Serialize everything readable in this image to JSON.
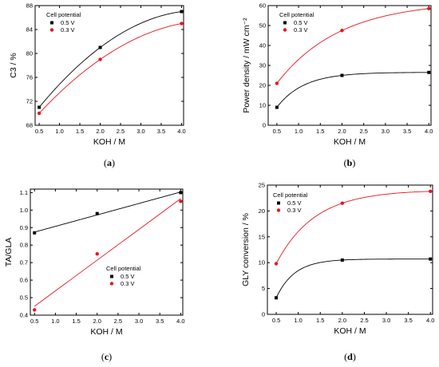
{
  "figure": {
    "colors": {
      "series_0_5V": "#000000",
      "series_0_3V": "#e8141c"
    }
  },
  "chart_data": [
    {
      "type": "scatter",
      "panel": "(a)",
      "xlabel": "KOH / M",
      "ylabel": "C3 / %",
      "xlim": [
        0.4,
        4.05
      ],
      "ylim": [
        68,
        88
      ],
      "xticks": [
        0.5,
        1.0,
        1.5,
        2.0,
        2.5,
        3.0,
        3.5,
        4.0
      ],
      "yticks": [
        68,
        72,
        76,
        80,
        84,
        88
      ],
      "xtick_decimals": 1,
      "ytick_decimals": 0,
      "legend": {
        "title": "Cell potential",
        "position": "top-left"
      },
      "series": [
        {
          "name": "0.5 V",
          "color": "#000000",
          "marker": "square",
          "x": [
            0.5,
            2.0,
            4.0
          ],
          "y": [
            71,
            81,
            87
          ],
          "fit": "quadratic"
        },
        {
          "name": "0.3 V",
          "color": "#e8141c",
          "marker": "circle",
          "x": [
            0.5,
            2.0,
            4.0
          ],
          "y": [
            70,
            79,
            85
          ],
          "fit": "quadratic"
        }
      ]
    },
    {
      "type": "scatter",
      "panel": "(b)",
      "xlabel": "KOH / M",
      "ylabel": "Power density / mW cm⁻²",
      "xlim": [
        0.3,
        4.05
      ],
      "ylim": [
        0,
        60
      ],
      "xticks": [
        0.5,
        1.0,
        1.5,
        2.0,
        2.5,
        3.0,
        3.5,
        4.0
      ],
      "yticks": [
        0,
        10,
        20,
        30,
        40,
        50,
        60
      ],
      "xtick_decimals": 1,
      "ytick_decimals": 0,
      "legend": {
        "title": "Cell potential",
        "position": "top-left"
      },
      "series": [
        {
          "name": "0.5 V",
          "color": "#000000",
          "marker": "square",
          "x": [
            0.5,
            2.0,
            4.0
          ],
          "y": [
            9,
            25,
            26.5
          ],
          "fit": "exp_sat"
        },
        {
          "name": "0.3 V",
          "color": "#e8141c",
          "marker": "circle",
          "x": [
            0.5,
            2.0,
            4.0
          ],
          "y": [
            21,
            47.5,
            58.5
          ],
          "fit": "exp_sat"
        }
      ]
    },
    {
      "type": "scatter",
      "panel": "(c)",
      "xlabel": "KOH / M",
      "ylabel": "TA/GLA",
      "xlim": [
        0.4,
        4.05
      ],
      "ylim": [
        0.4,
        1.12
      ],
      "xticks": [
        0.5,
        1.0,
        1.5,
        2.0,
        2.5,
        3.0,
        3.5,
        4.0
      ],
      "yticks": [
        0.4,
        0.5,
        0.6,
        0.7,
        0.8,
        0.9,
        1.0,
        1.1
      ],
      "xtick_decimals": 1,
      "ytick_decimals": 1,
      "legend": {
        "title": "Cell potential",
        "position": "bottom-right"
      },
      "series": [
        {
          "name": "0.5 V",
          "color": "#000000",
          "marker": "square",
          "x": [
            0.5,
            2.0,
            4.0
          ],
          "y": [
            0.87,
            0.98,
            1.1
          ],
          "fit": "linear"
        },
        {
          "name": "0.3 V",
          "color": "#e8141c",
          "marker": "circle",
          "x": [
            0.5,
            2.0,
            4.0
          ],
          "y": [
            0.43,
            0.75,
            1.05
          ],
          "fit": "linear"
        }
      ]
    },
    {
      "type": "scatter",
      "panel": "(d)",
      "xlabel": "KOH / M",
      "ylabel": "GLY conversion / %",
      "xlim": [
        0.3,
        4.05
      ],
      "ylim": [
        0,
        25
      ],
      "xticks": [
        0.5,
        1.0,
        1.5,
        2.0,
        2.5,
        3.0,
        3.5,
        4.0
      ],
      "yticks": [
        0,
        5,
        10,
        15,
        20,
        25
      ],
      "xtick_decimals": 1,
      "ytick_decimals": 0,
      "legend": {
        "title": "Cell potential",
        "position": "top-left"
      },
      "series": [
        {
          "name": "0.5 V",
          "color": "#000000",
          "marker": "square",
          "x": [
            0.5,
            2.0,
            4.0
          ],
          "y": [
            3.2,
            10.5,
            10.7
          ],
          "fit": "exp_sat"
        },
        {
          "name": "0.3 V",
          "color": "#e8141c",
          "marker": "circle",
          "x": [
            0.5,
            2.0,
            4.0
          ],
          "y": [
            9.8,
            21.5,
            23.8
          ],
          "fit": "exp_sat"
        }
      ]
    }
  ]
}
